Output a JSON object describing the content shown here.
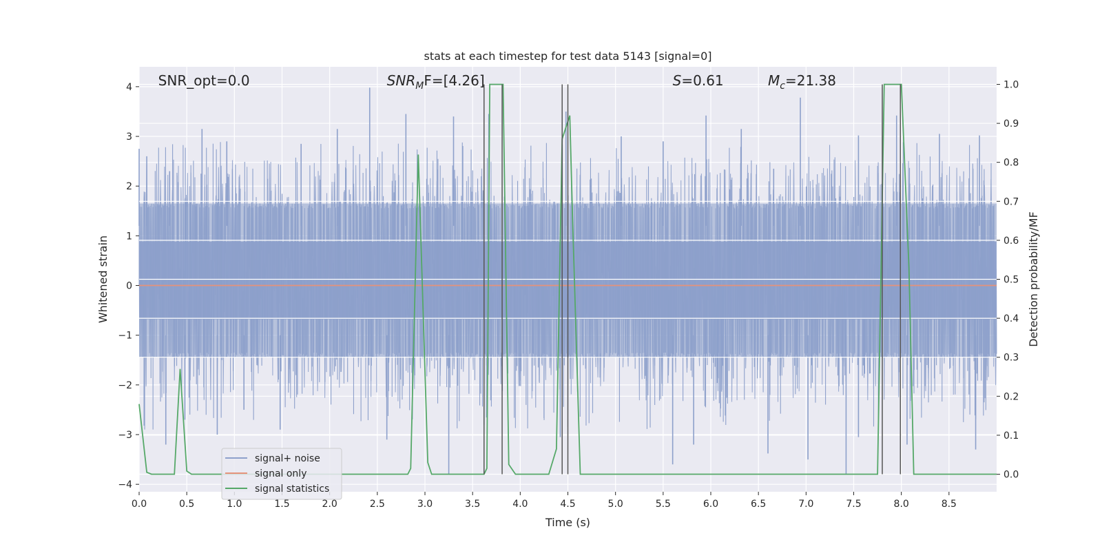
{
  "chart_data": {
    "type": "line",
    "title": "stats at each timestep for test data 5143 [signal=0]",
    "xlabel": "Time (s)",
    "ylabel_left": "Whitened strain",
    "ylabel_right": "Detection probability/MF",
    "xlim": [
      0,
      9.0
    ],
    "ylim_left": [
      -4.15,
      4.4
    ],
    "ylim_right": [
      -0.045,
      1.045
    ],
    "xticks": [
      0,
      0.5,
      1.0,
      1.5,
      2.0,
      2.5,
      3.0,
      3.5,
      4.0,
      4.5,
      5.0,
      5.5,
      6.0,
      6.5,
      7.0,
      7.5,
      8.0,
      8.5
    ],
    "xtick_labels": [
      "0.0",
      "0.5",
      "1.0",
      "1.5",
      "2.0",
      "2.5",
      "3.0",
      "3.5",
      "4.0",
      "4.5",
      "5.0",
      "5.5",
      "6.0",
      "6.5",
      "7.0",
      "7.5",
      "8.0",
      "8.5"
    ],
    "yticks_left": [
      -4,
      -3,
      -2,
      -1,
      0,
      1,
      2,
      3,
      4
    ],
    "ytick_labels_left": [
      "−4",
      "−3",
      "−2",
      "−1",
      "0",
      "1",
      "2",
      "3",
      "4"
    ],
    "yticks_right": [
      0.0,
      0.1,
      0.2,
      0.3,
      0.4,
      0.5,
      0.6,
      0.7,
      0.8,
      0.9,
      1.0
    ],
    "ytick_labels_right": [
      "0.0",
      "0.1",
      "0.2",
      "0.3",
      "0.4",
      "0.5",
      "0.6",
      "0.7",
      "0.8",
      "0.9",
      "1.0"
    ],
    "grid": true,
    "legend_position": "lower-left",
    "series": [
      {
        "name": "signal+ noise",
        "axis": "left",
        "color": "#8da0cb",
        "kind": "noise",
        "band": [
          -1.45,
          1.65
        ],
        "dense_band": [
          -0.68,
          0.88
        ],
        "peaks": [
          [
            0.0,
            2.75
          ],
          [
            0.08,
            2.6
          ],
          [
            0.32,
            2.3
          ],
          [
            0.66,
            3.15
          ],
          [
            0.92,
            2.9
          ],
          [
            1.7,
            2.85
          ],
          [
            2.08,
            3.15
          ],
          [
            2.42,
            3.98
          ],
          [
            2.8,
            3.45
          ],
          [
            3.3,
            3.4
          ],
          [
            3.67,
            3.45
          ],
          [
            4.48,
            3.5
          ],
          [
            5.06,
            3.0
          ],
          [
            5.5,
            2.9
          ],
          [
            5.95,
            3.42
          ],
          [
            6.32,
            3.15
          ],
          [
            6.66,
            2.35
          ],
          [
            6.94,
            3.78
          ],
          [
            7.55,
            3.02
          ],
          [
            7.95,
            3.42
          ],
          [
            8.4,
            3.05
          ],
          [
            8.82,
            3.02
          ]
        ],
        "troughs": [
          [
            0.28,
            -3.2
          ],
          [
            0.48,
            -2.7
          ],
          [
            0.82,
            -3.0
          ],
          [
            1.1,
            -2.5
          ],
          [
            1.48,
            -2.9
          ],
          [
            2.6,
            -3.1
          ],
          [
            3.25,
            -3.8
          ],
          [
            3.62,
            -2.8
          ],
          [
            4.42,
            -3.05
          ],
          [
            5.6,
            -3.6
          ],
          [
            5.82,
            -3.2
          ],
          [
            6.6,
            -3.38
          ],
          [
            7.02,
            -3.5
          ],
          [
            7.42,
            -3.8
          ],
          [
            7.55,
            -3.05
          ],
          [
            8.06,
            -3.2
          ],
          [
            8.78,
            -3.3
          ]
        ],
        "seed": 5143
      },
      {
        "name": "signal only",
        "axis": "left",
        "color": "#e5927a",
        "x": [
          0,
          9.0
        ],
        "y": [
          0,
          0
        ]
      },
      {
        "name": "signal statistics",
        "axis": "right",
        "color": "#55a868",
        "x": [
          0.0,
          0.08,
          0.13,
          0.2,
          0.3,
          0.37,
          0.43,
          0.5,
          0.55,
          2.82,
          2.85,
          2.93,
          3.03,
          3.07,
          3.62,
          3.65,
          3.68,
          3.76,
          3.82,
          3.88,
          3.95,
          4.3,
          4.38,
          4.44,
          4.52,
          4.55,
          4.63,
          4.68,
          7.75,
          7.82,
          7.9,
          8.0,
          8.08,
          8.13,
          9.0
        ],
        "y": [
          0.18,
          0.005,
          0.0,
          0.0,
          0.0,
          0.0,
          0.27,
          0.008,
          0.0,
          0.0,
          0.015,
          0.82,
          0.03,
          0.0,
          0.0,
          0.015,
          1.0,
          1.0,
          1.0,
          0.025,
          0.0,
          0.0,
          0.065,
          0.86,
          0.92,
          0.65,
          0.0,
          0.0,
          0.0,
          1.0,
          1.0,
          1.0,
          0.53,
          0.0,
          0.0
        ]
      }
    ],
    "vertical_lines": [
      3.62,
      3.81,
      4.44,
      4.5,
      7.8,
      7.99
    ],
    "vertical_line_color": "#555555",
    "annotations": [
      {
        "x": 0.2,
        "text": "SNR_opt=0.0"
      },
      {
        "x": 2.6,
        "text": "SNR",
        "sub": "M",
        "suffix": "F=[4.26]",
        "italic": true
      },
      {
        "x": 5.6,
        "text": "S",
        "suffix": "=0.61",
        "italic": true
      },
      {
        "x": 6.6,
        "text": "M",
        "sub": "c",
        "suffix": "=21.38",
        "italic": true
      }
    ],
    "background_color": "#eaeaf2",
    "grid_color": "#ffffff"
  }
}
